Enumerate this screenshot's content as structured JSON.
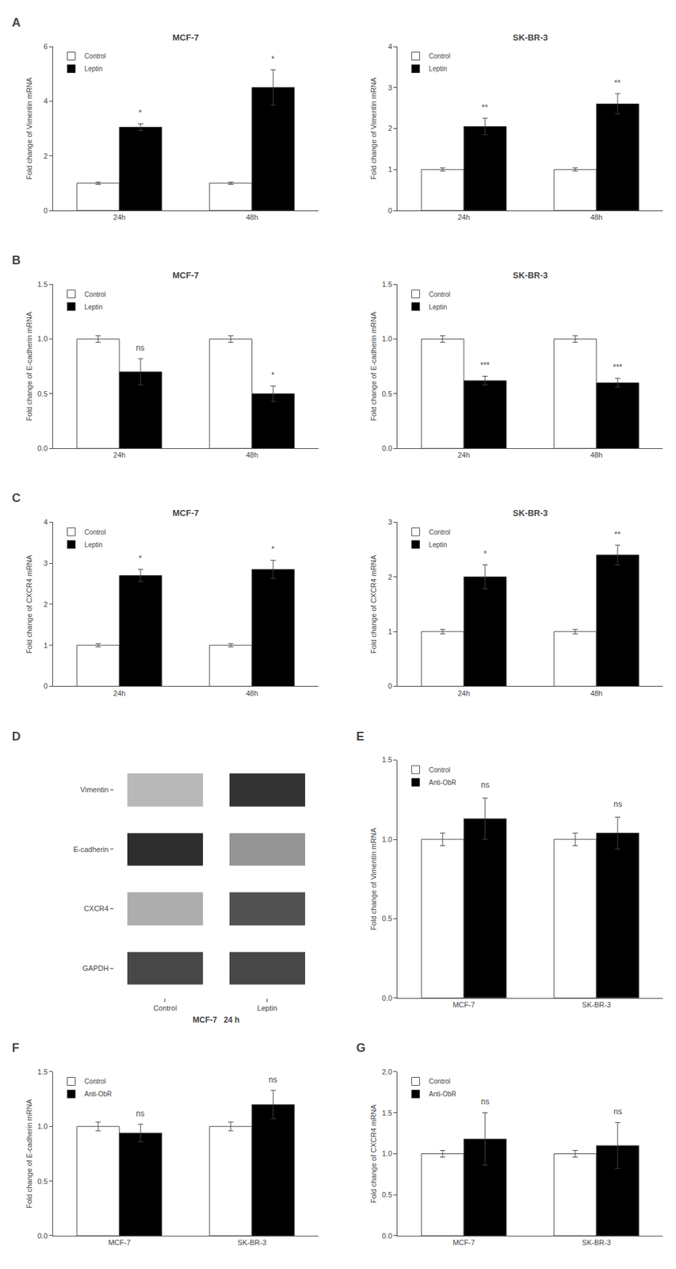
{
  "chart_data": [
    {
      "type": "bar",
      "title": "MCF-7",
      "ylabel": "Fold change of Vimentin mRNA",
      "categories": [
        "24h",
        "48h"
      ],
      "series": [
        {
          "name": "Control",
          "color": "white",
          "values": [
            1.0,
            1.0
          ],
          "errors": [
            0.04,
            0.04
          ]
        },
        {
          "name": "Leptin",
          "color": "black",
          "values": [
            3.05,
            4.5
          ],
          "errors": [
            0.12,
            0.65
          ],
          "significance": [
            "*",
            "*"
          ]
        }
      ],
      "ylim": [
        0,
        6
      ],
      "yticks": [
        0,
        2,
        4,
        6
      ],
      "grid": false,
      "legend": "upper left",
      "annotations": [
        "A"
      ]
    },
    {
      "type": "bar",
      "title": "SK-BR-3",
      "ylabel": "Fold change of Vimentin mRNA",
      "categories": [
        "24h",
        "48h"
      ],
      "series": [
        {
          "name": "Control",
          "color": "white",
          "values": [
            1.0,
            1.0
          ],
          "errors": [
            0.04,
            0.04
          ]
        },
        {
          "name": "Leptin",
          "color": "black",
          "values": [
            2.05,
            2.6
          ],
          "errors": [
            0.2,
            0.25
          ],
          "significance": [
            "**",
            "**"
          ]
        }
      ],
      "ylim": [
        0,
        4
      ],
      "yticks": [
        0,
        1,
        2,
        3,
        4
      ],
      "grid": false,
      "legend": "upper left"
    },
    {
      "type": "bar",
      "title": "MCF-7",
      "ylabel": "Fold change of E-cadherin mRNA",
      "categories": [
        "24h",
        "48h"
      ],
      "series": [
        {
          "name": "Control",
          "color": "white",
          "values": [
            1.0,
            1.0
          ],
          "errors": [
            0.03,
            0.03
          ]
        },
        {
          "name": "Leptin",
          "color": "black",
          "values": [
            0.7,
            0.5
          ],
          "errors": [
            0.12,
            0.07
          ],
          "significance": [
            "ns",
            "*"
          ]
        }
      ],
      "ylim": [
        0.0,
        1.5
      ],
      "yticks": [
        {
          "value": 0,
          "label": "0.0"
        },
        0.5,
        {
          "value": 1,
          "label": "1.0"
        },
        1.5
      ],
      "grid": false,
      "legend": "upper left",
      "annotations": [
        "B"
      ]
    },
    {
      "type": "bar",
      "title": "SK-BR-3",
      "ylabel": "Fold change of E-cadherin mRNA",
      "categories": [
        "24h",
        "48h"
      ],
      "series": [
        {
          "name": "Control",
          "color": "white",
          "values": [
            1.0,
            1.0
          ],
          "errors": [
            0.03,
            0.03
          ]
        },
        {
          "name": "Leptin",
          "color": "black",
          "values": [
            0.62,
            0.6
          ],
          "errors": [
            0.04,
            0.04
          ],
          "significance": [
            "***",
            "***"
          ]
        }
      ],
      "ylim": [
        0.0,
        1.5
      ],
      "yticks": [
        {
          "value": 0,
          "label": "0.0"
        },
        0.5,
        {
          "value": 1,
          "label": "1.0"
        },
        1.5
      ],
      "grid": false,
      "legend": "upper left"
    },
    {
      "type": "bar",
      "title": "MCF-7",
      "ylabel": "Fold change of CXCR4 mRNA",
      "categories": [
        "24h",
        "48h"
      ],
      "series": [
        {
          "name": "Control",
          "color": "white",
          "values": [
            1.0,
            1.0
          ],
          "errors": [
            0.04,
            0.04
          ]
        },
        {
          "name": "Leptin",
          "color": "black",
          "values": [
            2.7,
            2.85
          ],
          "errors": [
            0.15,
            0.22
          ],
          "significance": [
            "*",
            "*"
          ]
        }
      ],
      "ylim": [
        0,
        4
      ],
      "yticks": [
        0,
        1,
        2,
        3,
        4
      ],
      "grid": false,
      "legend": "upper left",
      "annotations": [
        "C"
      ]
    },
    {
      "type": "bar",
      "title": "SK-BR-3",
      "ylabel": "Fold change of CXCR4 mRNA",
      "categories": [
        "24h",
        "48h"
      ],
      "series": [
        {
          "name": "Control",
          "color": "white",
          "values": [
            1.0,
            1.0
          ],
          "errors": [
            0.04,
            0.04
          ]
        },
        {
          "name": "Leptin",
          "color": "black",
          "values": [
            2.0,
            2.4
          ],
          "errors": [
            0.22,
            0.18
          ],
          "significance": [
            "*",
            "**"
          ]
        }
      ],
      "ylim": [
        0,
        3
      ],
      "yticks": [
        0,
        1,
        2,
        3
      ],
      "grid": false,
      "legend": "upper left"
    },
    {
      "type": "heatmap",
      "xlabel": "MCF-7   24 h",
      "rows": [
        "Vimentin",
        "E-cadherin",
        "CXCR4",
        "GAPDH"
      ],
      "columns": [
        "Control",
        "Leptin"
      ],
      "cells": [
        [
          0.28,
          0.8
        ],
        [
          0.82,
          0.42
        ],
        [
          0.32,
          0.68
        ],
        [
          0.72,
          0.72
        ]
      ],
      "grid": false,
      "annotations": [
        "D"
      ]
    },
    {
      "type": "bar",
      "ylabel": "Fold change of Vimentin mRNA",
      "categories": [
        "MCF-7",
        "SK-BR-3"
      ],
      "series": [
        {
          "name": "Control",
          "color": "white",
          "values": [
            1.0,
            1.0
          ],
          "errors": [
            0.04,
            0.04
          ]
        },
        {
          "name": "Anti-ObR",
          "color": "black",
          "values": [
            1.13,
            1.04
          ],
          "errors": [
            0.13,
            0.1
          ],
          "significance": [
            "ns",
            "ns"
          ]
        }
      ],
      "ylim": [
        0.0,
        1.5
      ],
      "yticks": [
        {
          "value": 0,
          "label": "0.0"
        },
        0.5,
        {
          "value": 1,
          "label": "1.0"
        },
        1.5
      ],
      "grid": false,
      "legend": "upper left",
      "annotations": [
        "E"
      ]
    },
    {
      "type": "bar",
      "ylabel": "Fold change of E-cadherin mRNA",
      "categories": [
        "MCF-7",
        "SK-BR-3"
      ],
      "series": [
        {
          "name": "Control",
          "color": "white",
          "values": [
            1.0,
            1.0
          ],
          "errors": [
            0.04,
            0.04
          ]
        },
        {
          "name": "Anti-ObR",
          "color": "black",
          "values": [
            0.94,
            1.2
          ],
          "errors": [
            0.08,
            0.13
          ],
          "significance": [
            "ns",
            "ns"
          ]
        }
      ],
      "ylim": [
        0.0,
        1.5
      ],
      "yticks": [
        {
          "value": 0,
          "label": "0.0"
        },
        0.5,
        {
          "value": 1,
          "label": "1.0"
        },
        1.5
      ],
      "grid": false,
      "legend": "upper left",
      "annotations": [
        "F"
      ]
    },
    {
      "type": "bar",
      "ylabel": "Fold change of CXCR4 mRNA",
      "categories": [
        "MCF-7",
        "SK-BR-3"
      ],
      "series": [
        {
          "name": "Control",
          "color": "white",
          "values": [
            1.0,
            1.0
          ],
          "errors": [
            0.04,
            0.04
          ]
        },
        {
          "name": "Anti-ObR",
          "color": "black",
          "values": [
            1.18,
            1.1
          ],
          "errors": [
            0.32,
            0.28
          ],
          "significance": [
            "ns",
            "ns"
          ]
        }
      ],
      "ylim": [
        0.0,
        2.0
      ],
      "yticks": [
        {
          "value": 0,
          "label": "0.0"
        },
        0.5,
        {
          "value": 1,
          "label": "1.0"
        },
        1.5,
        {
          "value": 2,
          "label": "2.0"
        }
      ],
      "grid": false,
      "legend": "upper left",
      "annotations": [
        "G"
      ]
    }
  ]
}
